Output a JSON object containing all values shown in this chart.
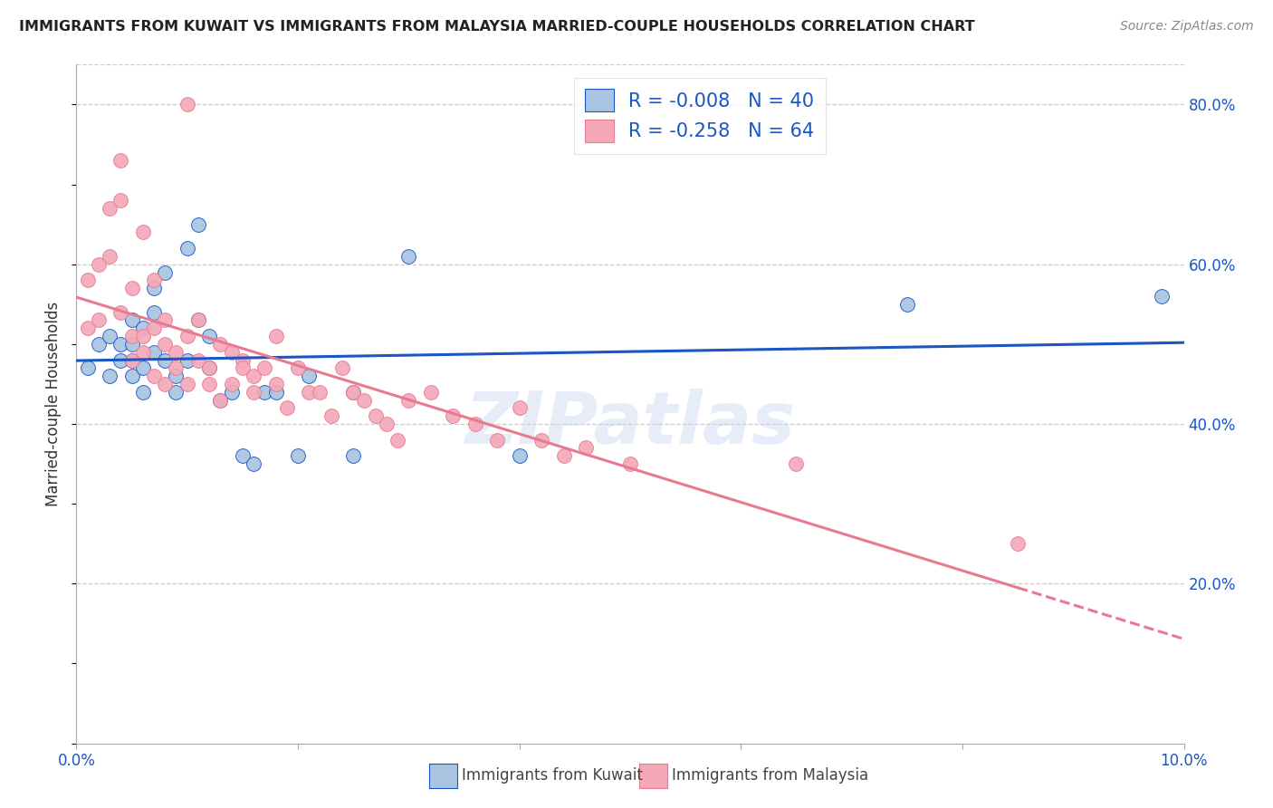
{
  "title": "IMMIGRANTS FROM KUWAIT VS IMMIGRANTS FROM MALAYSIA MARRIED-COUPLE HOUSEHOLDS CORRELATION CHART",
  "source": "Source: ZipAtlas.com",
  "ylabel": "Married-couple Households",
  "xlim": [
    0.0,
    0.1
  ],
  "ylim": [
    0.0,
    0.85
  ],
  "xticks": [
    0.0,
    0.02,
    0.04,
    0.06,
    0.08,
    0.1
  ],
  "xticklabels": [
    "0.0%",
    "",
    "",
    "",
    "",
    "10.0%"
  ],
  "yticks_right": [
    0.2,
    0.4,
    0.6,
    0.8
  ],
  "yticklabels_right": [
    "20.0%",
    "40.0%",
    "60.0%",
    "80.0%"
  ],
  "grid_color": "#cccccc",
  "background_color": "#ffffff",
  "kuwait_color": "#a8c4e0",
  "malaysia_color": "#f4a8b8",
  "trendline_kuwait_color": "#1a56c4",
  "trendline_malaysia_color": "#e87a90",
  "legend_R_kuwait": "-0.008",
  "legend_N_kuwait": "40",
  "legend_R_malaysia": "-0.258",
  "legend_N_malaysia": "64",
  "legend_label_kuwait": "Immigrants from Kuwait",
  "legend_label_malaysia": "Immigrants from Malaysia",
  "watermark": "ZIPatlas",
  "kuwait_x": [
    0.001,
    0.002,
    0.003,
    0.003,
    0.004,
    0.004,
    0.005,
    0.005,
    0.005,
    0.005,
    0.006,
    0.006,
    0.006,
    0.007,
    0.007,
    0.007,
    0.008,
    0.008,
    0.009,
    0.009,
    0.01,
    0.01,
    0.011,
    0.011,
    0.012,
    0.012,
    0.013,
    0.014,
    0.015,
    0.016,
    0.017,
    0.018,
    0.02,
    0.021,
    0.025,
    0.025,
    0.03,
    0.04,
    0.075,
    0.098
  ],
  "kuwait_y": [
    0.47,
    0.5,
    0.51,
    0.46,
    0.48,
    0.5,
    0.46,
    0.5,
    0.53,
    0.48,
    0.44,
    0.47,
    0.52,
    0.49,
    0.54,
    0.57,
    0.59,
    0.48,
    0.44,
    0.46,
    0.62,
    0.48,
    0.65,
    0.53,
    0.51,
    0.47,
    0.43,
    0.44,
    0.36,
    0.35,
    0.44,
    0.44,
    0.36,
    0.46,
    0.44,
    0.36,
    0.61,
    0.36,
    0.55,
    0.56
  ],
  "malaysia_x": [
    0.001,
    0.001,
    0.002,
    0.002,
    0.003,
    0.003,
    0.004,
    0.004,
    0.004,
    0.005,
    0.005,
    0.005,
    0.006,
    0.006,
    0.006,
    0.007,
    0.007,
    0.007,
    0.008,
    0.008,
    0.008,
    0.009,
    0.009,
    0.01,
    0.01,
    0.01,
    0.011,
    0.011,
    0.012,
    0.012,
    0.013,
    0.013,
    0.014,
    0.014,
    0.015,
    0.015,
    0.016,
    0.016,
    0.017,
    0.018,
    0.018,
    0.019,
    0.02,
    0.021,
    0.022,
    0.023,
    0.024,
    0.025,
    0.026,
    0.027,
    0.028,
    0.029,
    0.03,
    0.032,
    0.034,
    0.036,
    0.038,
    0.04,
    0.042,
    0.044,
    0.046,
    0.05,
    0.065,
    0.085
  ],
  "malaysia_y": [
    0.52,
    0.58,
    0.53,
    0.6,
    0.61,
    0.67,
    0.54,
    0.68,
    0.73,
    0.51,
    0.57,
    0.48,
    0.49,
    0.51,
    0.64,
    0.46,
    0.52,
    0.58,
    0.5,
    0.45,
    0.53,
    0.49,
    0.47,
    0.51,
    0.45,
    0.8,
    0.48,
    0.53,
    0.45,
    0.47,
    0.5,
    0.43,
    0.49,
    0.45,
    0.48,
    0.47,
    0.46,
    0.44,
    0.47,
    0.51,
    0.45,
    0.42,
    0.47,
    0.44,
    0.44,
    0.41,
    0.47,
    0.44,
    0.43,
    0.41,
    0.4,
    0.38,
    0.43,
    0.44,
    0.41,
    0.4,
    0.38,
    0.42,
    0.38,
    0.36,
    0.37,
    0.35,
    0.35,
    0.25
  ]
}
